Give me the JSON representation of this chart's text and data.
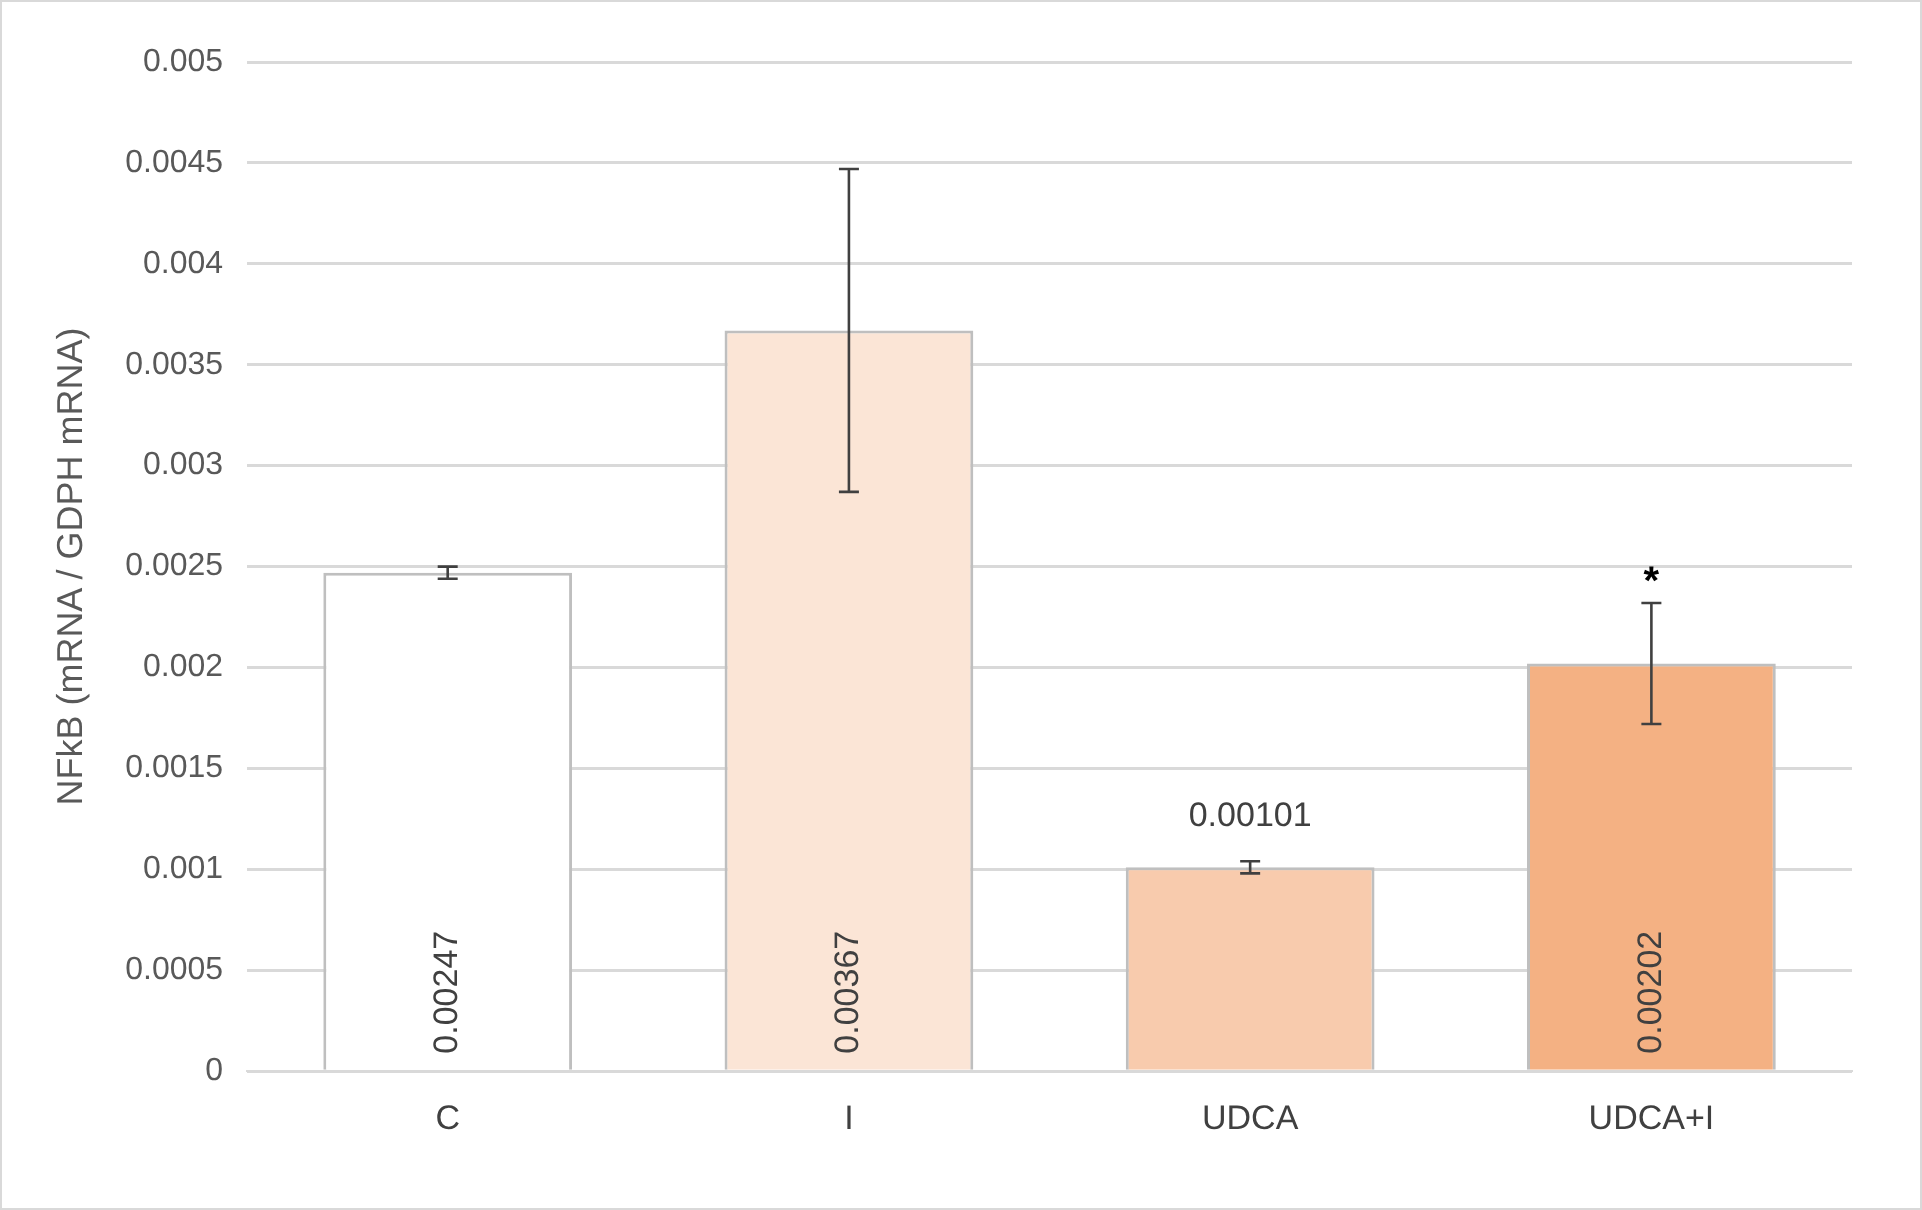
{
  "chart_data": {
    "type": "bar",
    "ylabel": "NFkB (mRNA / GDPH mRNA)",
    "categories": [
      "C",
      "I",
      "UDCA",
      "UDCA+I"
    ],
    "values": [
      0.00247,
      0.00367,
      0.00101,
      0.00202
    ],
    "colors": [
      "#ffffff",
      "#fbe5d6",
      "#f8cbad",
      "#f4b183"
    ],
    "errors": [
      3e-05,
      0.0008,
      3e-05,
      0.0003
    ],
    "data_labels": true,
    "annotations": [
      "*"
    ],
    "ylim": [
      0,
      0.005
    ],
    "yticks": [
      0,
      0.0005,
      0.001,
      0.0015,
      0.002,
      0.0025,
      0.003,
      0.0035,
      0.004,
      0.0045,
      0.005
    ],
    "grid": "y",
    "legend": false
  }
}
